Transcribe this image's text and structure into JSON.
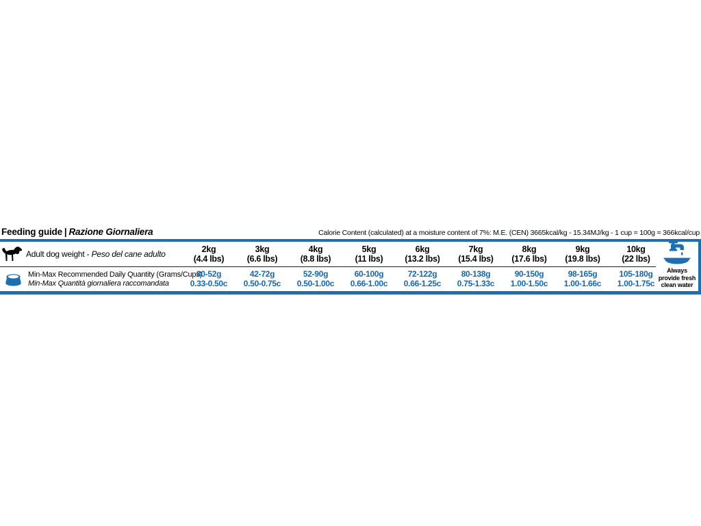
{
  "header": {
    "title_left": "Feeding guide",
    "title_separator": "|",
    "title_right": "Razione Giornaliera",
    "calorie_note": "Calorie Content (calculated) at a moisture content of 7%: M.E. (CEN) 3665kcal/kg - 15.34MJ/kg - 1 cup = 100g = 366kcal/cup"
  },
  "table": {
    "row1_label_en": "Adult dog weight - ",
    "row1_label_it": "Peso del cane adulto",
    "row2_label_en": "Min-Max Recommended Daily Quantity (Grams/Cups)",
    "row2_label_it": "Min-Max Quantità giornaliera raccomandata",
    "columns": [
      {
        "weight": "2kg",
        "lbs": "(4.4 lbs)",
        "grams": "30-52g",
        "cups": "0.33-0.50c"
      },
      {
        "weight": "3kg",
        "lbs": "(6.6 lbs)",
        "grams": "42-72g",
        "cups": "0.50-0.75c"
      },
      {
        "weight": "4kg",
        "lbs": "(8.8 lbs)",
        "grams": "52-90g",
        "cups": "0.50-1.00c"
      },
      {
        "weight": "5kg",
        "lbs": "(11 lbs)",
        "grams": "60-100g",
        "cups": "0.66-1.00c"
      },
      {
        "weight": "6kg",
        "lbs": "(13.2 lbs)",
        "grams": "72-122g",
        "cups": "0.66-1.25c"
      },
      {
        "weight": "7kg",
        "lbs": "(15.4 lbs)",
        "grams": "80-138g",
        "cups": "0.75-1.33c"
      },
      {
        "weight": "8kg",
        "lbs": "(17.6 lbs)",
        "grams": "90-150g",
        "cups": "1.00-1.50c"
      },
      {
        "weight": "9kg",
        "lbs": "(19.8 lbs)",
        "grams": "98-165g",
        "cups": "1.00-1.66c"
      },
      {
        "weight": "10kg",
        "lbs": "(22 lbs)",
        "grams": "105-180g",
        "cups": "1.00-1.75c"
      }
    ],
    "water_note_lines": [
      "Always",
      "provide fresh",
      "clean water"
    ]
  },
  "icons": {
    "dog": "adult-dog-icon",
    "bowl": "food-bowl-icon",
    "water": "faucet-water-bowl-icon"
  },
  "colors": {
    "accent_blue": "#1e6fb2",
    "value_blue": "#1666ae",
    "line_dark": "#1f1f1f",
    "text_black": "#000000"
  }
}
